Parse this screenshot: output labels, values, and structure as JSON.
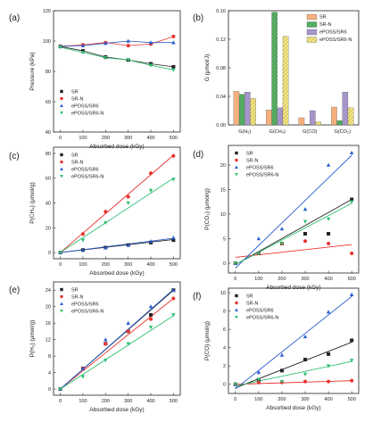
{
  "chart_data": [
    {
      "panel": "(a)",
      "type": "line",
      "xlabel": "Absorbed dose (kGy)",
      "ylabel": "Pressure (kPa)",
      "xlim": [
        -30,
        530
      ],
      "ylim": [
        40,
        120
      ],
      "xticks": [
        0,
        100,
        200,
        300,
        400,
        500
      ],
      "yticks": [
        40,
        60,
        80,
        100,
        120
      ],
      "legend_position": "bottom-left",
      "series": [
        {
          "name": "SR",
          "color": "#222222",
          "marker": "square",
          "x": [
            0,
            100,
            200,
            300,
            400,
            500
          ],
          "y": [
            96.5,
            93.5,
            89.5,
            87.5,
            85,
            83
          ]
        },
        {
          "name": "SR-N",
          "color": "#e8322f",
          "marker": "circle",
          "x": [
            0,
            100,
            200,
            300,
            400,
            500
          ],
          "y": [
            96.5,
            97.5,
            99,
            97,
            98,
            103
          ]
        },
        {
          "name": "ePOSS/SR6",
          "color": "#2a5ccf",
          "marker": "triangle",
          "x": [
            0,
            100,
            200,
            300,
            400,
            500
          ],
          "y": [
            96.5,
            97,
            98.5,
            100,
            99,
            99
          ]
        },
        {
          "name": "ePOSS/SR6-N",
          "color": "#2fbf71",
          "marker": "triangle-down",
          "x": [
            0,
            100,
            200,
            300,
            400,
            500
          ],
          "y": [
            96,
            92.5,
            89,
            87.5,
            84,
            81
          ]
        }
      ]
    },
    {
      "panel": "(b)",
      "type": "bar",
      "ylabel": "G (μmol/J)",
      "ylim": [
        0,
        0.16
      ],
      "yticks": [
        0,
        0.04,
        0.08,
        0.12,
        0.16
      ],
      "yticklabels": [
        "0.00",
        "0.04",
        "0.08",
        "0.12",
        "0.16"
      ],
      "categories": [
        "G(H₂)",
        "G(CH₄)",
        "G(CO)",
        "G(CO₂)"
      ],
      "legend_position": "top-right",
      "series": [
        {
          "name": "SR",
          "color": "#f5b07e",
          "hatch": "none",
          "values": [
            0.047,
            0.021,
            0.01,
            0.025
          ]
        },
        {
          "name": "SR-N",
          "color": "#5bb46a",
          "hatch": "diagonal",
          "values": [
            0.043,
            0.158,
            0.001,
            0.006
          ]
        },
        {
          "name": "ePOSS/SR6",
          "color": "#a695c9",
          "hatch": "none",
          "values": [
            0.046,
            0.024,
            0.02,
            0.046
          ]
        },
        {
          "name": "ePOSS/SR6-N",
          "color": "#f3e68a",
          "hatch": "diagonal",
          "values": [
            0.037,
            0.124,
            0.004,
            0.024
          ]
        }
      ]
    },
    {
      "panel": "(c)",
      "type": "scatter",
      "xlabel": "Absorbed dose (kGy)",
      "ylabel": "P(CH₄) (μmol/g)",
      "xlim": [
        -30,
        530
      ],
      "ylim": [
        -5,
        85
      ],
      "xticks": [
        0,
        100,
        200,
        300,
        400,
        500
      ],
      "yticks": [
        0,
        20,
        40,
        60,
        80
      ],
      "legend_position": "top-left",
      "series": [
        {
          "name": "SR",
          "color": "#222222",
          "marker": "square",
          "x": [
            0,
            100,
            200,
            300,
            400,
            500
          ],
          "y": [
            0,
            2,
            4,
            6,
            8,
            10
          ],
          "fit": [
            0,
            10.5
          ]
        },
        {
          "name": "SR-N",
          "color": "#e8322f",
          "marker": "circle",
          "x": [
            0,
            100,
            200,
            300,
            400,
            500
          ],
          "y": [
            0,
            15,
            33,
            45,
            64,
            78
          ],
          "fit": [
            0,
            78.5
          ]
        },
        {
          "name": "ePOSS/SR6",
          "color": "#2a5ccf",
          "marker": "triangle",
          "x": [
            0,
            100,
            200,
            300,
            400,
            500
          ],
          "y": [
            0,
            2,
            4,
            6,
            9,
            12
          ],
          "fit": [
            0,
            11.5
          ]
        },
        {
          "name": "ePOSS/SR6-N",
          "color": "#2fbf71",
          "marker": "triangle-down",
          "x": [
            0,
            100,
            200,
            300,
            400,
            500
          ],
          "y": [
            0,
            10,
            24,
            40,
            50,
            59
          ],
          "fit": [
            0,
            60
          ]
        }
      ]
    },
    {
      "panel": "(d)",
      "type": "scatter",
      "xlabel": "Absorbed dose (kGy)",
      "ylabel": "P(CO₂) (μmol/g)",
      "xlim": [
        -30,
        530
      ],
      "ylim": [
        -2,
        24
      ],
      "xticks": [
        0,
        100,
        200,
        300,
        400,
        500
      ],
      "yticks": [
        0,
        5,
        10,
        15,
        20
      ],
      "legend_position": "top-left",
      "series": [
        {
          "name": "SR",
          "color": "#222222",
          "marker": "square",
          "x": [
            0,
            100,
            200,
            300,
            400,
            500
          ],
          "y": [
            0,
            2,
            4,
            6,
            6,
            13
          ],
          "fit": [
            -0.3,
            13
          ]
        },
        {
          "name": "SR-N",
          "color": "#e8322f",
          "marker": "circle",
          "x": [
            0,
            100,
            200,
            300,
            400,
            500
          ],
          "y": [
            0,
            2,
            4,
            4.5,
            4,
            2
          ],
          "fit": [
            1.2,
            3.8
          ]
        },
        {
          "name": "ePOSS/SR6",
          "color": "#2a5ccf",
          "marker": "triangle",
          "x": [
            0,
            100,
            200,
            300,
            400,
            500
          ],
          "y": [
            0,
            5,
            7,
            11,
            20,
            22.5
          ],
          "fit": [
            -1,
            22
          ]
        },
        {
          "name": "ePOSS/SR6-N",
          "color": "#2fbf71",
          "marker": "triangle-down",
          "x": [
            0,
            100,
            200,
            300,
            400,
            500
          ],
          "y": [
            0,
            2,
            4,
            8.5,
            9,
            12.5
          ],
          "fit": [
            -0.3,
            12.2
          ]
        }
      ]
    },
    {
      "panel": "(e)",
      "type": "scatter",
      "xlabel": "Absorbed dose (kGy)",
      "ylabel": "P(H₂) (μmol/g)",
      "xlim": [
        -30,
        530
      ],
      "ylim": [
        -1.5,
        26
      ],
      "xticks": [
        0,
        100,
        200,
        300,
        400,
        500
      ],
      "yticks": [
        0,
        4,
        8,
        12,
        16,
        20,
        24
      ],
      "legend_position": "top-left",
      "series": [
        {
          "name": "SR",
          "color": "#222222",
          "marker": "square",
          "x": [
            0,
            100,
            200,
            300,
            400,
            500
          ],
          "y": [
            0,
            5,
            11,
            14,
            18,
            24
          ],
          "fit": [
            0,
            24
          ]
        },
        {
          "name": "SR-N",
          "color": "#e8322f",
          "marker": "circle",
          "x": [
            0,
            100,
            200,
            300,
            400,
            500
          ],
          "y": [
            0,
            5,
            11,
            14,
            17,
            22
          ],
          "fit": [
            0,
            22
          ]
        },
        {
          "name": "ePOSS/SR6",
          "color": "#2a5ccf",
          "marker": "triangle",
          "x": [
            0,
            100,
            200,
            300,
            400,
            500
          ],
          "y": [
            0,
            5,
            12,
            16,
            20,
            24
          ],
          "fit": [
            0,
            24.2
          ]
        },
        {
          "name": "ePOSS/SR6-N",
          "color": "#2fbf71",
          "marker": "triangle-down",
          "x": [
            0,
            100,
            200,
            300,
            400,
            500
          ],
          "y": [
            0,
            3,
            7,
            11,
            15,
            18
          ],
          "fit": [
            0,
            17.8
          ]
        }
      ]
    },
    {
      "panel": "(f)",
      "type": "scatter",
      "xlabel": "Absorbed dose (kGy)",
      "ylabel": "P(CO) (μmol/g)",
      "xlim": [
        -30,
        530
      ],
      "ylim": [
        -1,
        10.5
      ],
      "xticks": [
        0,
        100,
        200,
        300,
        400,
        500
      ],
      "yticks": [
        0,
        2,
        4,
        6,
        8,
        10
      ],
      "legend_position": "top-left",
      "series": [
        {
          "name": "SR",
          "color": "#222222",
          "marker": "square",
          "x": [
            0,
            100,
            200,
            300,
            400,
            500
          ],
          "y": [
            0,
            0.5,
            1.5,
            2.7,
            3.3,
            4.8
          ],
          "fit": [
            -0.4,
            4.6
          ]
        },
        {
          "name": "SR-N",
          "color": "#e8322f",
          "marker": "circle",
          "x": [
            0,
            100,
            200,
            300,
            400,
            500
          ],
          "y": [
            0,
            0.2,
            0.2,
            0.3,
            0.3,
            0.4
          ],
          "fit": [
            0,
            0.4
          ]
        },
        {
          "name": "ePOSS/SR6",
          "color": "#2a5ccf",
          "marker": "triangle",
          "x": [
            0,
            100,
            200,
            300,
            400,
            500
          ],
          "y": [
            0,
            1.3,
            3.2,
            5.2,
            7.9,
            9.8
          ],
          "fit": [
            -0.5,
            9.6
          ]
        },
        {
          "name": "ePOSS/SR6-N",
          "color": "#2fbf71",
          "marker": "triangle-down",
          "x": [
            0,
            100,
            200,
            300,
            400,
            500
          ],
          "y": [
            0,
            0.5,
            0.3,
            1.1,
            2,
            2.6
          ],
          "fit": [
            -0.2,
            2.5
          ]
        }
      ]
    }
  ]
}
